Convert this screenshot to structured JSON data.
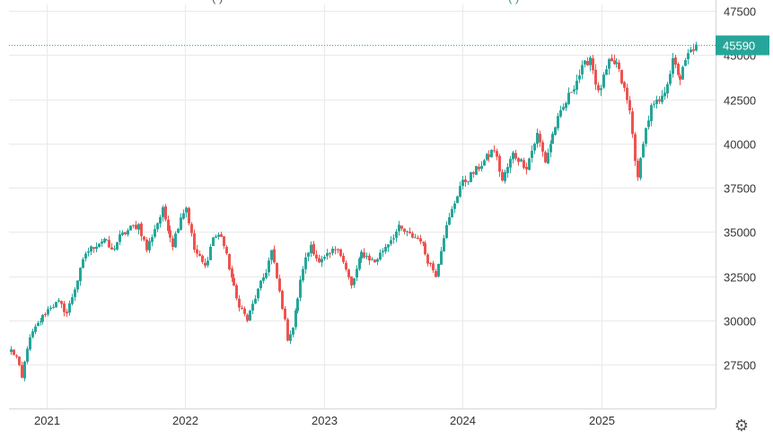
{
  "header": {
    "left_fragment": "(      )",
    "right_fragment": "(      )"
  },
  "colors": {
    "up": "#26a69a",
    "down": "#ef5350",
    "grid": "#e9e9e9",
    "last_price_badge": "#26a69a"
  },
  "settings_icon": "gear-icon",
  "last_price_label": "45590",
  "chart_data": {
    "type": "candlestick",
    "interval": "weekly",
    "x_ticks": [
      "2021",
      "2022",
      "2023",
      "2024",
      "2025"
    ],
    "y_ticks": [
      "47500",
      "45000",
      "42500",
      "40000",
      "37500",
      "35000",
      "32500",
      "30000",
      "27500"
    ],
    "ylim": [
      25000,
      47500
    ],
    "xlim": [
      "2020-09-28",
      "2025-10-13"
    ],
    "last_price": 45590,
    "grid": true,
    "anchors": [
      [
        "2020-09-28",
        28300
      ],
      [
        "2020-10-12",
        27900
      ],
      [
        "2020-10-26",
        26700
      ],
      [
        "2020-11-09",
        28500
      ],
      [
        "2020-11-23",
        29300
      ],
      [
        "2020-12-14",
        30000
      ],
      [
        "2021-01-11",
        30800
      ],
      [
        "2021-02-01",
        31000
      ],
      [
        "2021-02-22",
        30400
      ],
      [
        "2021-03-22",
        32300
      ],
      [
        "2021-04-12",
        33800
      ],
      [
        "2021-05-10",
        34300
      ],
      [
        "2021-05-31",
        34600
      ],
      [
        "2021-06-21",
        33900
      ],
      [
        "2021-07-12",
        34700
      ],
      [
        "2021-08-09",
        35200
      ],
      [
        "2021-08-30",
        35400
      ],
      [
        "2021-09-20",
        34000
      ],
      [
        "2021-10-11",
        35200
      ],
      [
        "2021-11-01",
        36200
      ],
      [
        "2021-11-29",
        34300
      ],
      [
        "2021-12-20",
        35900
      ],
      [
        "2022-01-03",
        36400
      ],
      [
        "2022-01-24",
        34000
      ],
      [
        "2022-02-21",
        33000
      ],
      [
        "2022-03-14",
        34700
      ],
      [
        "2022-04-04",
        34800
      ],
      [
        "2022-04-25",
        33000
      ],
      [
        "2022-05-16",
        31200
      ],
      [
        "2022-06-13",
        30000
      ],
      [
        "2022-07-04",
        31300
      ],
      [
        "2022-08-01",
        32800
      ],
      [
        "2022-08-15",
        33900
      ],
      [
        "2022-09-12",
        30800
      ],
      [
        "2022-09-26",
        29000
      ],
      [
        "2022-10-10",
        29600
      ],
      [
        "2022-11-07",
        33000
      ],
      [
        "2022-11-28",
        34300
      ],
      [
        "2022-12-19",
        33200
      ],
      [
        "2023-01-09",
        33600
      ],
      [
        "2023-02-06",
        34200
      ],
      [
        "2023-03-13",
        31900
      ],
      [
        "2023-04-10",
        33800
      ],
      [
        "2023-05-15",
        33300
      ],
      [
        "2023-06-12",
        34200
      ],
      [
        "2023-07-17",
        35200
      ],
      [
        "2023-08-14",
        34800
      ],
      [
        "2023-09-11",
        34600
      ],
      [
        "2023-10-02",
        33400
      ],
      [
        "2023-10-23",
        32600
      ],
      [
        "2023-11-13",
        34800
      ],
      [
        "2023-12-04",
        36200
      ],
      [
        "2023-12-25",
        37600
      ],
      [
        "2024-02-05",
        38500
      ],
      [
        "2024-03-25",
        39700
      ],
      [
        "2024-04-15",
        37900
      ],
      [
        "2024-05-13",
        39400
      ],
      [
        "2024-06-17",
        38700
      ],
      [
        "2024-07-15",
        40500
      ],
      [
        "2024-08-05",
        39000
      ],
      [
        "2024-09-02",
        41000
      ],
      [
        "2024-10-14",
        43000
      ],
      [
        "2024-11-11",
        44200
      ],
      [
        "2024-12-02",
        44900
      ],
      [
        "2024-12-23",
        42800
      ],
      [
        "2025-01-20",
        44500
      ],
      [
        "2025-02-10",
        44500
      ],
      [
        "2025-03-03",
        43000
      ],
      [
        "2025-03-17",
        41800
      ],
      [
        "2025-04-07",
        37900
      ],
      [
        "2025-04-21",
        40200
      ],
      [
        "2025-05-12",
        42000
      ],
      [
        "2025-06-09",
        42500
      ],
      [
        "2025-07-07",
        44600
      ],
      [
        "2025-07-28",
        43700
      ],
      [
        "2025-08-18",
        45000
      ],
      [
        "2025-09-08",
        45590
      ]
    ]
  }
}
